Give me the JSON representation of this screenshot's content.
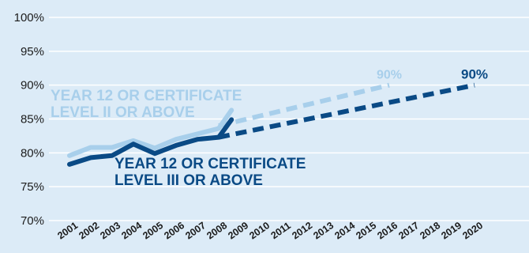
{
  "chart_data": {
    "type": "line",
    "title": "",
    "xlabel": "",
    "ylabel": "",
    "ylim": [
      70,
      100
    ],
    "y_ticks": [
      "70%",
      "75%",
      "80%",
      "85%",
      "90%",
      "95%",
      "100%"
    ],
    "categories": [
      "2001",
      "2002",
      "2003",
      "2004",
      "2005",
      "2006",
      "2007",
      "2008",
      "2009",
      "2010",
      "2011",
      "2012",
      "2013",
      "2014",
      "2015",
      "2016",
      "2017",
      "2018",
      "2019",
      "2020"
    ],
    "grid": true,
    "legend": "none",
    "series": [
      {
        "name": "YEAR 12 OR CERTIFICATE LEVEL II OR ABOVE",
        "color": "#a8cfeb",
        "label_lines": [
          "YEAR 12 OR CERTIFICATE",
          "LEVEL II OR ABOVE"
        ],
        "actual": {
          "x": [
            2001,
            2002,
            2003,
            2004,
            2005,
            2006,
            2007,
            2008,
            2008.6
          ],
          "y": [
            79.6,
            80.8,
            80.8,
            81.8,
            80.7,
            82.0,
            82.8,
            83.6,
            86.3
          ]
        },
        "projection": {
          "x": [
            2008,
            2016
          ],
          "y": [
            84.0,
            90.0
          ],
          "target_label": "90%"
        }
      },
      {
        "name": "YEAR 12 OR CERTIFICATE LEVEL III OR ABOVE",
        "color": "#0a4a85",
        "label_lines": [
          "YEAR 12 OR CERTIFICATE",
          "LEVEL III OR ABOVE"
        ],
        "actual": {
          "x": [
            2001,
            2002,
            2003,
            2004,
            2005,
            2006,
            2007,
            2008,
            2008.6
          ],
          "y": [
            78.3,
            79.3,
            79.6,
            81.3,
            79.9,
            81.1,
            82.0,
            82.3,
            84.9
          ]
        },
        "projection": {
          "x": [
            2008,
            2020
          ],
          "y": [
            82.3,
            90.0
          ],
          "target_label": "90%"
        }
      }
    ]
  }
}
